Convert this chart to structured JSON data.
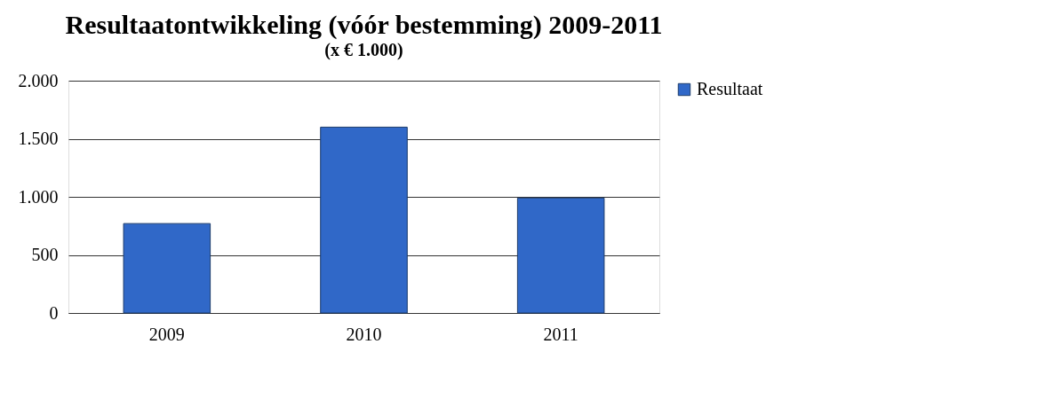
{
  "chart_data": {
    "type": "bar",
    "title": "Resultaatontwikkeling (vóór bestemming) 2009-2011",
    "subtitle": "(x € 1.000)",
    "categories": [
      "2009",
      "2010",
      "2011"
    ],
    "series": [
      {
        "name": "Resultaat",
        "color": "#3068c8",
        "values": [
          770,
          1600,
          990
        ]
      }
    ],
    "ylim": [
      0,
      2000
    ],
    "yticks": [
      0,
      {
        "value": 500,
        "label": "500"
      },
      {
        "value": 1000,
        "label": "1.000"
      },
      {
        "value": 1500,
        "label": "1.500"
      },
      {
        "value": 2000,
        "label": "2.000"
      }
    ],
    "grid": "y",
    "legend": "right"
  }
}
